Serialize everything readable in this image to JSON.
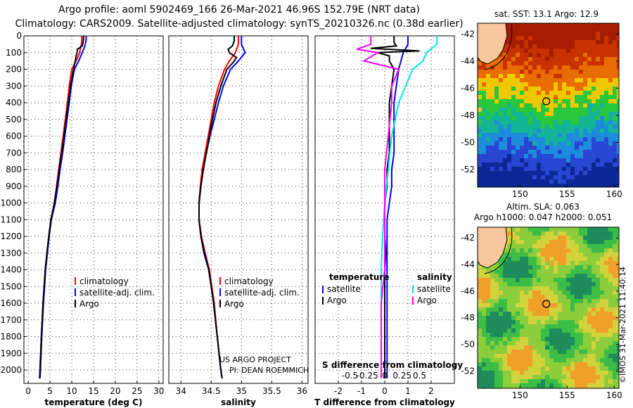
{
  "header": {
    "line1": "Argo profile: aoml 5902469_166 26-Mar-2021 46.96S 152.79E (NRT data)",
    "line2": "Climatology: CARS2009. Satellite-adjusted climatology: synTS_20210326.nc (0.38d earlier)"
  },
  "colors": {
    "climatology": "#ff0000",
    "satellite": "#0000ff",
    "argo": "#000000",
    "satellite_s": "#00e5e5",
    "argo_s": "#ff00ff"
  },
  "chart_data": [
    {
      "type": "line",
      "id": "temperature",
      "xlabel": "temperature (deg C)",
      "xlim": [
        -1,
        31
      ],
      "ylim": [
        2080,
        0
      ],
      "xticks": [
        0,
        5,
        10,
        15,
        20,
        25,
        30
      ],
      "yticks": [
        0,
        100,
        200,
        300,
        400,
        500,
        600,
        700,
        800,
        900,
        1000,
        1100,
        1200,
        1300,
        1400,
        1500,
        1600,
        1700,
        1800,
        1900,
        2000
      ],
      "legend": [
        "climatology",
        "satellite-adj. clim.",
        "Argo"
      ],
      "series": [
        {
          "name": "climatology",
          "color": "#ff0000",
          "depth": [
            0,
            25,
            50,
            75,
            100,
            150,
            200,
            300,
            400,
            500,
            600,
            700,
            800,
            900,
            1000,
            1100,
            1200,
            1400,
            1600,
            1800,
            2000,
            2050
          ],
          "values": [
            12.3,
            12.3,
            12.2,
            12.0,
            11.8,
            11.0,
            10.0,
            9.4,
            9.0,
            8.5,
            8.0,
            7.5,
            7.0,
            6.5,
            6.0,
            5.2,
            4.7,
            3.9,
            3.4,
            3.0,
            2.7,
            2.6
          ]
        },
        {
          "name": "satellite-adj. clim.",
          "color": "#0000ff",
          "depth": [
            0,
            25,
            50,
            75,
            100,
            150,
            200,
            300,
            400,
            500,
            600,
            700,
            800,
            900,
            1000,
            1100,
            1200,
            1400,
            1600,
            1800,
            2000,
            2050
          ],
          "values": [
            13.3,
            13.3,
            13.1,
            12.8,
            12.4,
            11.6,
            10.6,
            9.9,
            9.4,
            8.9,
            8.4,
            7.9,
            7.3,
            6.8,
            6.2,
            5.3,
            4.8,
            4.0,
            3.5,
            3.1,
            2.8,
            2.7
          ]
        },
        {
          "name": "Argo",
          "color": "#000000",
          "depth": [
            0,
            20,
            40,
            60,
            80,
            100,
            120,
            150,
            200,
            300,
            400,
            500,
            600,
            700,
            800,
            900,
            1000,
            1100,
            1200,
            1400,
            1600,
            1800,
            2000,
            2050
          ],
          "values": [
            12.7,
            12.7,
            12.6,
            12.4,
            11.3,
            11.2,
            11.0,
            10.8,
            10.4,
            9.7,
            9.2,
            8.7,
            8.2,
            7.7,
            7.1,
            6.6,
            6.0,
            5.2,
            4.7,
            3.9,
            3.4,
            3.0,
            2.7,
            2.6
          ]
        }
      ]
    },
    {
      "type": "line",
      "id": "salinity",
      "xlabel": "salinity",
      "xlim": [
        33.8,
        36.1
      ],
      "ylim": [
        2080,
        0
      ],
      "xticks": [
        34,
        34.5,
        35,
        35.5,
        36
      ],
      "legend": [
        "climatology",
        "satellite-adj. clim.",
        "Argo"
      ],
      "annotations": [
        "US ARGO PROJECT",
        "PI: DEAN ROEMMICH"
      ],
      "series": [
        {
          "name": "climatology",
          "color": "#ff0000",
          "depth": [
            0,
            50,
            100,
            150,
            200,
            300,
            400,
            500,
            600,
            700,
            800,
            900,
            1000,
            1100,
            1200,
            1300,
            1400,
            1600,
            1800,
            2000,
            2050
          ],
          "values": [
            34.95,
            34.95,
            34.9,
            34.8,
            34.72,
            34.62,
            34.55,
            34.5,
            34.45,
            34.4,
            34.35,
            34.32,
            34.3,
            34.3,
            34.34,
            34.4,
            34.47,
            34.55,
            34.6,
            34.66,
            34.68
          ]
        },
        {
          "name": "satellite-adj. clim.",
          "color": "#0000ff",
          "depth": [
            0,
            50,
            100,
            150,
            200,
            300,
            400,
            500,
            600,
            700,
            800,
            900,
            1000,
            1100,
            1200,
            1300,
            1400,
            1600,
            1800,
            2000,
            2050
          ],
          "values": [
            35.0,
            35.0,
            35.06,
            34.95,
            34.82,
            34.7,
            34.62,
            34.55,
            34.48,
            34.42,
            34.37,
            34.33,
            34.3,
            34.3,
            34.33,
            34.38,
            34.46,
            34.54,
            34.6,
            34.66,
            34.68
          ]
        },
        {
          "name": "Argo",
          "color": "#000000",
          "depth": [
            0,
            30,
            60,
            80,
            100,
            130,
            160,
            200,
            300,
            400,
            500,
            600,
            700,
            800,
            900,
            1000,
            1100,
            1200,
            1300,
            1400,
            1600,
            1800,
            2000,
            2050
          ],
          "values": [
            34.88,
            34.88,
            34.85,
            34.78,
            34.8,
            34.92,
            34.86,
            34.76,
            34.66,
            34.58,
            34.52,
            34.47,
            34.42,
            34.37,
            34.33,
            34.3,
            34.3,
            34.33,
            34.39,
            34.46,
            34.54,
            34.6,
            34.66,
            34.68
          ]
        }
      ]
    },
    {
      "type": "line",
      "id": "difference",
      "xlabel": "T difference from climatology",
      "xlabel_top": "S difference from climatology",
      "xlim": [
        -3,
        3
      ],
      "ylim": [
        2080,
        0
      ],
      "xticks": [
        -2,
        -1,
        0,
        1,
        2
      ],
      "xticklabels": [
        "-2",
        "-1",
        "0",
        "1",
        "2"
      ],
      "s_ticks": [
        -1.5,
        -0.75,
        0,
        0.75,
        1.5
      ],
      "s_ticklabels": [
        "-0.5",
        "-0.25",
        "0",
        "0.25",
        "0.5"
      ],
      "legend_titles": [
        "temperature",
        "salinity"
      ],
      "legend_t": [
        "satellite",
        "Argo"
      ],
      "legend_s": [
        "satellite",
        "Argo"
      ],
      "series": [
        {
          "name": "T satellite",
          "color": "#0000ff",
          "depth": [
            0,
            50,
            100,
            150,
            200,
            300,
            400,
            500,
            600,
            700,
            800,
            900,
            1000,
            1100,
            1200,
            1400,
            1600,
            1800,
            2000,
            2050
          ],
          "values": [
            1.0,
            1.0,
            0.8,
            0.7,
            0.6,
            0.5,
            0.4,
            0.4,
            0.4,
            0.4,
            0.3,
            0.3,
            0.2,
            0.1,
            0.1,
            0.1,
            0.1,
            0.1,
            0.1,
            0.1
          ]
        },
        {
          "name": "T Argo",
          "color": "#000000",
          "depth": [
            0,
            40,
            60,
            75,
            90,
            100,
            120,
            150,
            200,
            300,
            400,
            500,
            600,
            700,
            800,
            900,
            1000,
            1100,
            1200,
            1300,
            1400,
            1600,
            1800,
            2000,
            2050
          ],
          "values": [
            0.4,
            0.4,
            0.5,
            -0.6,
            1.5,
            -0.3,
            0.2,
            0.2,
            0.4,
            0.3,
            0.2,
            0.2,
            0.2,
            0.2,
            0.1,
            0.1,
            0.0,
            0.0,
            0.0,
            0.05,
            0.0,
            0.0,
            0.0,
            0.0,
            0.0
          ]
        },
        {
          "name": "S satellite",
          "color": "#00e5e5",
          "depth": [
            0,
            50,
            100,
            150,
            200,
            300,
            400,
            600,
            800,
            1000,
            1200,
            1400,
            1600,
            1800,
            2000,
            2050
          ],
          "values": [
            0.75,
            0.75,
            0.6,
            0.55,
            0.4,
            0.3,
            0.2,
            0.1,
            0.05,
            0.0,
            -0.03,
            -0.05,
            -0.05,
            -0.05,
            -0.05,
            -0.05
          ]
        },
        {
          "name": "S Argo",
          "color": "#ff00ff",
          "depth": [
            0,
            50,
            80,
            100,
            150,
            200,
            300,
            400,
            600,
            800,
            1000,
            1200,
            1400,
            1600,
            1800,
            2000,
            2050
          ],
          "values": [
            -0.2,
            -0.2,
            -0.4,
            -0.1,
            -0.3,
            0.2,
            0.1,
            0.1,
            0.05,
            0.0,
            0.0,
            0.0,
            0.0,
            -0.05,
            -0.05,
            -0.05,
            -0.05
          ]
        }
      ]
    },
    {
      "type": "heatmap",
      "id": "sst_map",
      "title": "sat. SST: 13.1 Argo: 12.9",
      "xticks": [
        150,
        155,
        160
      ],
      "yticks": [
        -42,
        -44,
        -46,
        -48,
        -50,
        -52
      ],
      "xlim": [
        145.5,
        160.5
      ],
      "ylim": [
        -53.3,
        -41.2
      ],
      "float_position": [
        152.79,
        -46.96
      ]
    },
    {
      "type": "heatmap",
      "id": "sla_map",
      "title_line1": "Altim. SLA: 0.063",
      "title_line2": "Argo h1000: 0.047 h2000: 0.051",
      "xticks": [
        150,
        155,
        160
      ],
      "yticks": [
        -42,
        -44,
        -46,
        -48,
        -50,
        -52
      ],
      "xlim": [
        145.5,
        160.5
      ],
      "ylim": [
        -53.3,
        -41.2
      ],
      "float_position": [
        152.79,
        -46.96
      ]
    }
  ],
  "footer": {
    "credit": "©IMOS 31-Mar-2021 11:40:14"
  }
}
